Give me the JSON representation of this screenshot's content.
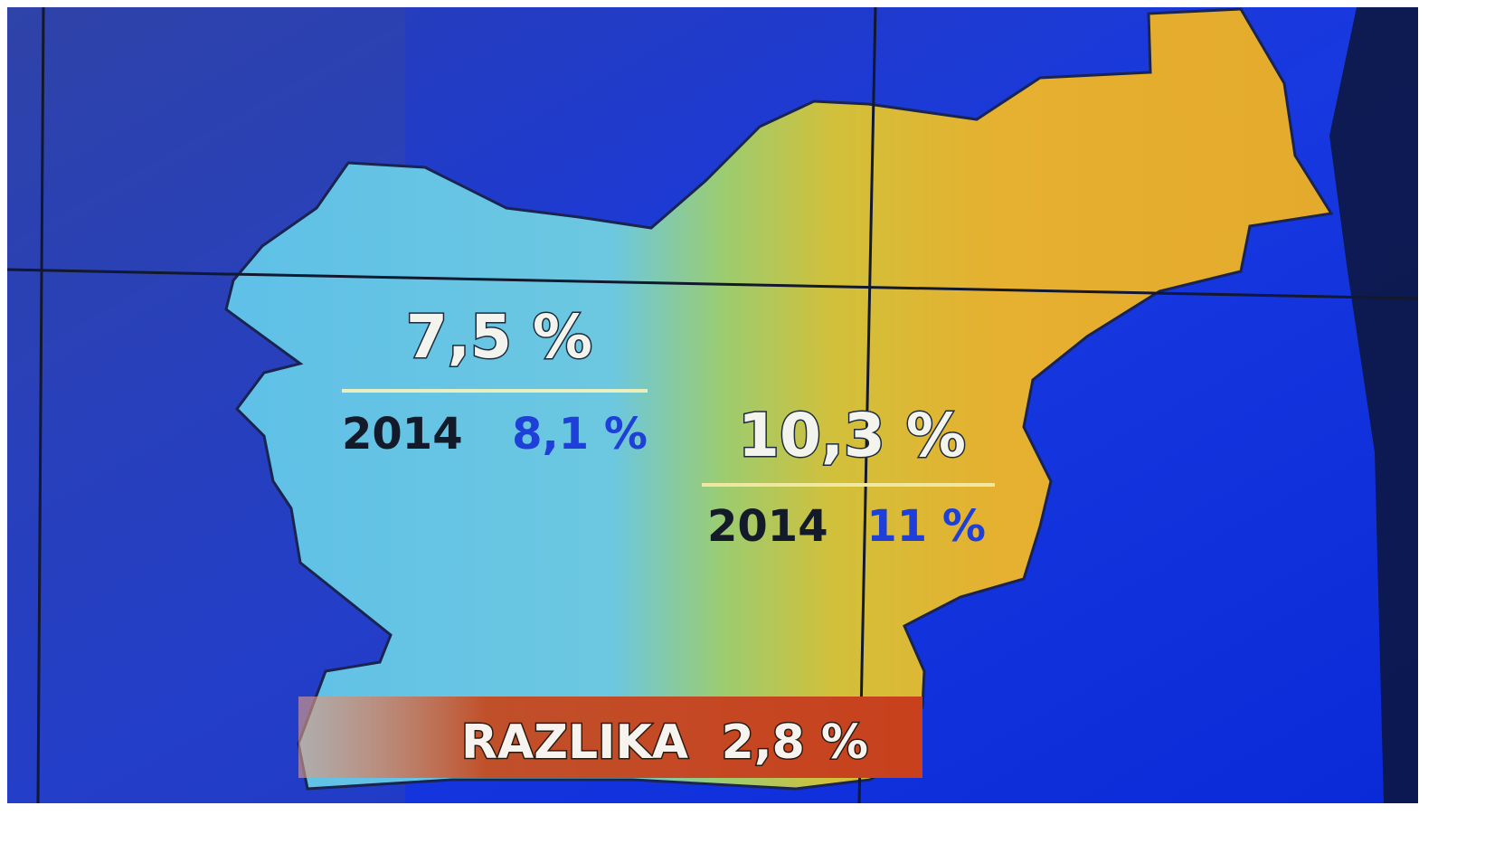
{
  "map": {
    "regions": [
      {
        "value": "7,5 %",
        "year": "2014",
        "previous": "8,1 %"
      },
      {
        "value": "10,3 %",
        "year": "2014",
        "previous": "11 %"
      }
    ],
    "footer": {
      "label": "RAZLIKA",
      "value": "2,8 %"
    }
  }
}
